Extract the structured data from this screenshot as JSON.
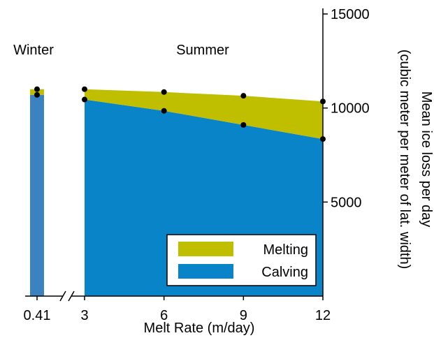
{
  "chart_data": {
    "type": "area",
    "xlabel": "Melt Rate (m/day)",
    "ylabel_lines": [
      "Mean ice loss per day",
      "(cubic meter per meter of lat. width)"
    ],
    "ylim": [
      0,
      15000
    ],
    "y_ticks": [
      "5000",
      "10000",
      "15000"
    ],
    "y_axis_position": "right",
    "broken_x_axis": true,
    "regions": [
      {
        "label": "Winter",
        "x_ticks": [
          "0.41"
        ]
      },
      {
        "label": "Summer",
        "x_ticks": [
          "3",
          "6",
          "9",
          "12"
        ]
      }
    ],
    "winter": {
      "x": 0.41,
      "calving": 10700,
      "total": 11000
    },
    "summer": {
      "x": [
        3,
        6,
        9,
        12
      ],
      "calving": [
        10450,
        9850,
        9100,
        8350
      ],
      "total": [
        11000,
        10850,
        10650,
        10350
      ]
    },
    "series": [
      {
        "name": "Melting",
        "color": "#bfbf00"
      },
      {
        "name": "Calving",
        "color": "#0a84c8"
      }
    ],
    "winter_bar_color": "#3a82c0",
    "legend_position": "bottom-right",
    "grid": false
  }
}
